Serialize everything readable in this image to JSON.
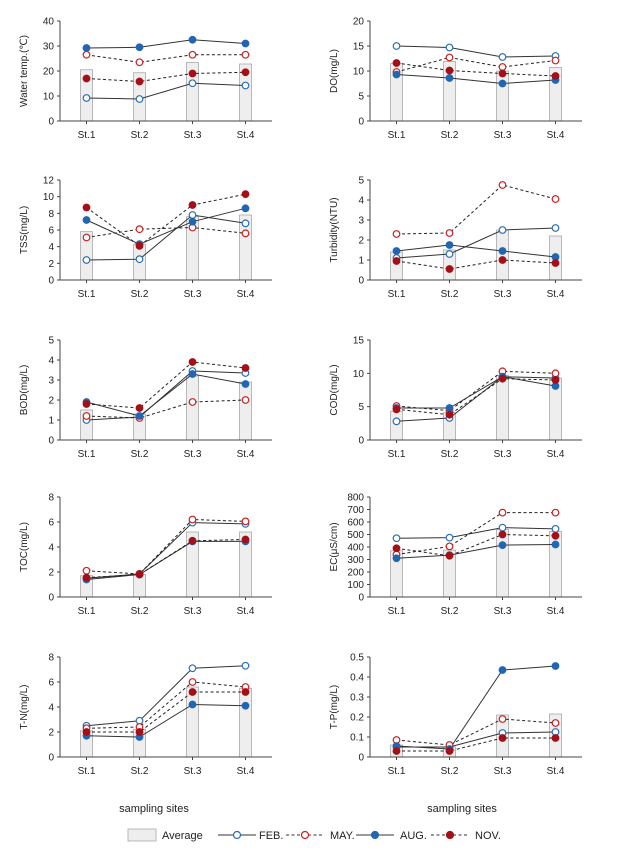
{
  "x_axis_title": "sampling sites",
  "colors": {
    "average_fill": "#eeeeee",
    "average_stroke": "#a8a8a8",
    "feb": "#2a6fb5",
    "may": "#cc1f1f",
    "aug": "#2166b3",
    "nov": "#a50f15",
    "axis": "#444444"
  },
  "legend": [
    {
      "key": "avg",
      "label": "Average"
    },
    {
      "key": "feb",
      "label": "FEB."
    },
    {
      "key": "may",
      "label": "MAY."
    },
    {
      "key": "aug",
      "label": "AUG."
    },
    {
      "key": "nov",
      "label": "NOV."
    }
  ],
  "chart_data": [
    {
      "type": "bar+line",
      "ylabel": "Water temp.(℃)",
      "ylim": [
        0,
        40
      ],
      "yticks": [
        0,
        10,
        20,
        30,
        40
      ],
      "categories": [
        "St.1",
        "St.2",
        "St.3",
        "St.4"
      ],
      "average": [
        20.5,
        19.3,
        23.4,
        22.8
      ],
      "series": [
        {
          "name": "FEB.",
          "values": [
            9.2,
            8.8,
            15.1,
            14.2
          ]
        },
        {
          "name": "MAY.",
          "values": [
            26.5,
            23.5,
            26.5,
            26.5
          ]
        },
        {
          "name": "AUG.",
          "values": [
            29.2,
            29.5,
            32.5,
            31.0
          ]
        },
        {
          "name": "NOV.",
          "values": [
            17.0,
            15.8,
            19.0,
            19.5
          ]
        }
      ]
    },
    {
      "type": "bar+line",
      "ylabel": "DO(mg/L)",
      "ylim": [
        0,
        20
      ],
      "yticks": [
        0,
        5,
        10,
        15,
        20
      ],
      "categories": [
        "St.1",
        "St.2",
        "St.3",
        "St.4"
      ],
      "average": [
        11.5,
        11.9,
        10.0,
        10.7
      ],
      "series": [
        {
          "name": "FEB.",
          "values": [
            15.0,
            14.7,
            12.8,
            13.0
          ]
        },
        {
          "name": "MAY.",
          "values": [
            9.8,
            12.7,
            10.8,
            12.1
          ]
        },
        {
          "name": "AUG.",
          "values": [
            9.3,
            8.6,
            7.5,
            8.2
          ]
        },
        {
          "name": "NOV.",
          "values": [
            11.6,
            10.1,
            9.5,
            9.0
          ]
        }
      ]
    },
    {
      "type": "bar+line",
      "ylabel": "TSS(mg/L)",
      "ylim": [
        0,
        12
      ],
      "yticks": [
        0,
        2,
        4,
        6,
        8,
        10,
        12
      ],
      "categories": [
        "St.1",
        "St.2",
        "St.3",
        "St.4"
      ],
      "average": [
        5.8,
        4.3,
        7.6,
        7.8
      ],
      "series": [
        {
          "name": "FEB.",
          "values": [
            2.4,
            2.5,
            7.8,
            6.8
          ]
        },
        {
          "name": "MAY.",
          "values": [
            5.1,
            6.1,
            6.3,
            5.6
          ]
        },
        {
          "name": "AUG.",
          "values": [
            7.2,
            4.3,
            7.0,
            8.6
          ]
        },
        {
          "name": "NOV.",
          "values": [
            8.7,
            4.1,
            9.0,
            10.3
          ]
        }
      ]
    },
    {
      "type": "bar+line",
      "ylabel": "Turbidity(NTU)",
      "ylim": [
        0,
        5
      ],
      "yticks": [
        0,
        1,
        2,
        3,
        4,
        5
      ],
      "categories": [
        "St.1",
        "St.2",
        "St.3",
        "St.4"
      ],
      "average": [
        1.4,
        1.5,
        2.5,
        2.2
      ],
      "series": [
        {
          "name": "FEB.",
          "values": [
            1.1,
            1.3,
            2.5,
            2.6
          ]
        },
        {
          "name": "MAY.",
          "values": [
            2.3,
            2.35,
            4.75,
            4.05
          ]
        },
        {
          "name": "AUG.",
          "values": [
            1.45,
            1.75,
            1.45,
            1.15
          ]
        },
        {
          "name": "NOV.",
          "values": [
            0.95,
            0.55,
            1.0,
            0.85
          ]
        }
      ]
    },
    {
      "type": "bar+line",
      "ylabel": "BOD(mg/L)",
      "ylim": [
        0,
        5
      ],
      "yticks": [
        0,
        1,
        2,
        3,
        4,
        5
      ],
      "categories": [
        "St.1",
        "St.2",
        "St.3",
        "St.4"
      ],
      "average": [
        1.5,
        1.3,
        3.2,
        2.9
      ],
      "series": [
        {
          "name": "FEB.",
          "values": [
            1.0,
            1.15,
            3.45,
            3.35
          ]
        },
        {
          "name": "MAY.",
          "values": [
            1.2,
            1.1,
            1.9,
            2.0
          ]
        },
        {
          "name": "AUG.",
          "values": [
            1.9,
            1.2,
            3.3,
            2.8
          ]
        },
        {
          "name": "NOV.",
          "values": [
            1.8,
            1.6,
            3.9,
            3.6
          ]
        }
      ]
    },
    {
      "type": "bar+line",
      "ylabel": "COD(mg/L)",
      "ylim": [
        0,
        15
      ],
      "yticks": [
        0,
        5,
        10,
        15
      ],
      "categories": [
        "St.1",
        "St.2",
        "St.3",
        "St.4"
      ],
      "average": [
        4.3,
        4.1,
        9.7,
        9.3
      ],
      "series": [
        {
          "name": "FEB.",
          "values": [
            2.8,
            3.3,
            9.5,
            9.3
          ]
        },
        {
          "name": "MAY.",
          "values": [
            5.1,
            4.4,
            10.3,
            10.0
          ]
        },
        {
          "name": "AUG.",
          "values": [
            4.8,
            4.8,
            9.5,
            8.1
          ]
        },
        {
          "name": "NOV.",
          "values": [
            4.6,
            3.8,
            9.2,
            9.0
          ]
        }
      ]
    },
    {
      "type": "bar+line",
      "ylabel": "TOC(mg/L)",
      "ylim": [
        0,
        8
      ],
      "yticks": [
        0,
        2,
        4,
        6,
        8
      ],
      "categories": [
        "St.1",
        "St.2",
        "St.3",
        "St.4"
      ],
      "average": [
        1.7,
        1.8,
        5.2,
        5.2
      ],
      "series": [
        {
          "name": "FEB.",
          "values": [
            1.5,
            1.85,
            5.95,
            5.85
          ]
        },
        {
          "name": "MAY.",
          "values": [
            2.1,
            1.85,
            6.2,
            6.05
          ]
        },
        {
          "name": "AUG.",
          "values": [
            1.4,
            1.8,
            4.45,
            4.45
          ]
        },
        {
          "name": "NOV.",
          "values": [
            1.55,
            1.8,
            4.5,
            4.6
          ]
        }
      ]
    },
    {
      "type": "bar+line",
      "ylabel": "EC(μS/cm)",
      "ylim": [
        0,
        800
      ],
      "yticks": [
        0,
        100,
        200,
        300,
        400,
        500,
        600,
        700,
        800
      ],
      "categories": [
        "St.1",
        "St.2",
        "St.3",
        "St.4"
      ],
      "average": [
        370,
        375,
        540,
        525
      ],
      "series": [
        {
          "name": "FEB.",
          "values": [
            470,
            475,
            555,
            545
          ]
        },
        {
          "name": "MAY.",
          "values": [
            340,
            405,
            675,
            675
          ]
        },
        {
          "name": "AUG.",
          "values": [
            310,
            335,
            415,
            420
          ]
        },
        {
          "name": "NOV.",
          "values": [
            390,
            330,
            500,
            490
          ]
        }
      ]
    },
    {
      "type": "bar+line",
      "ylabel": "T-N(mg/L)",
      "ylim": [
        0,
        8
      ],
      "yticks": [
        0,
        2,
        4,
        6,
        8
      ],
      "categories": [
        "St.1",
        "St.2",
        "St.3",
        "St.4"
      ],
      "average": [
        2.1,
        2.2,
        5.6,
        5.5
      ],
      "series": [
        {
          "name": "FEB.",
          "values": [
            2.5,
            2.9,
            7.1,
            7.3
          ]
        },
        {
          "name": "MAY.",
          "values": [
            2.3,
            2.4,
            6.0,
            5.6
          ]
        },
        {
          "name": "AUG.",
          "values": [
            1.7,
            1.6,
            4.2,
            4.1
          ]
        },
        {
          "name": "NOV.",
          "values": [
            2.0,
            2.0,
            5.2,
            5.2
          ]
        }
      ]
    },
    {
      "type": "bar+line",
      "ylabel": "T-P(mg/L)",
      "ylim": [
        0,
        0.5
      ],
      "yticks": [
        0,
        0.1,
        0.2,
        0.3,
        0.4,
        0.5
      ],
      "categories": [
        "St.1",
        "St.2",
        "St.3",
        "St.4"
      ],
      "average": [
        0.06,
        0.05,
        0.21,
        0.215
      ],
      "series": [
        {
          "name": "FEB.",
          "values": [
            0.05,
            0.05,
            0.12,
            0.125
          ]
        },
        {
          "name": "MAY.",
          "values": [
            0.085,
            0.06,
            0.19,
            0.17
          ]
        },
        {
          "name": "AUG.",
          "values": [
            0.055,
            0.04,
            0.435,
            0.455
          ]
        },
        {
          "name": "NOV.",
          "values": [
            0.03,
            0.03,
            0.095,
            0.095
          ]
        }
      ]
    }
  ]
}
